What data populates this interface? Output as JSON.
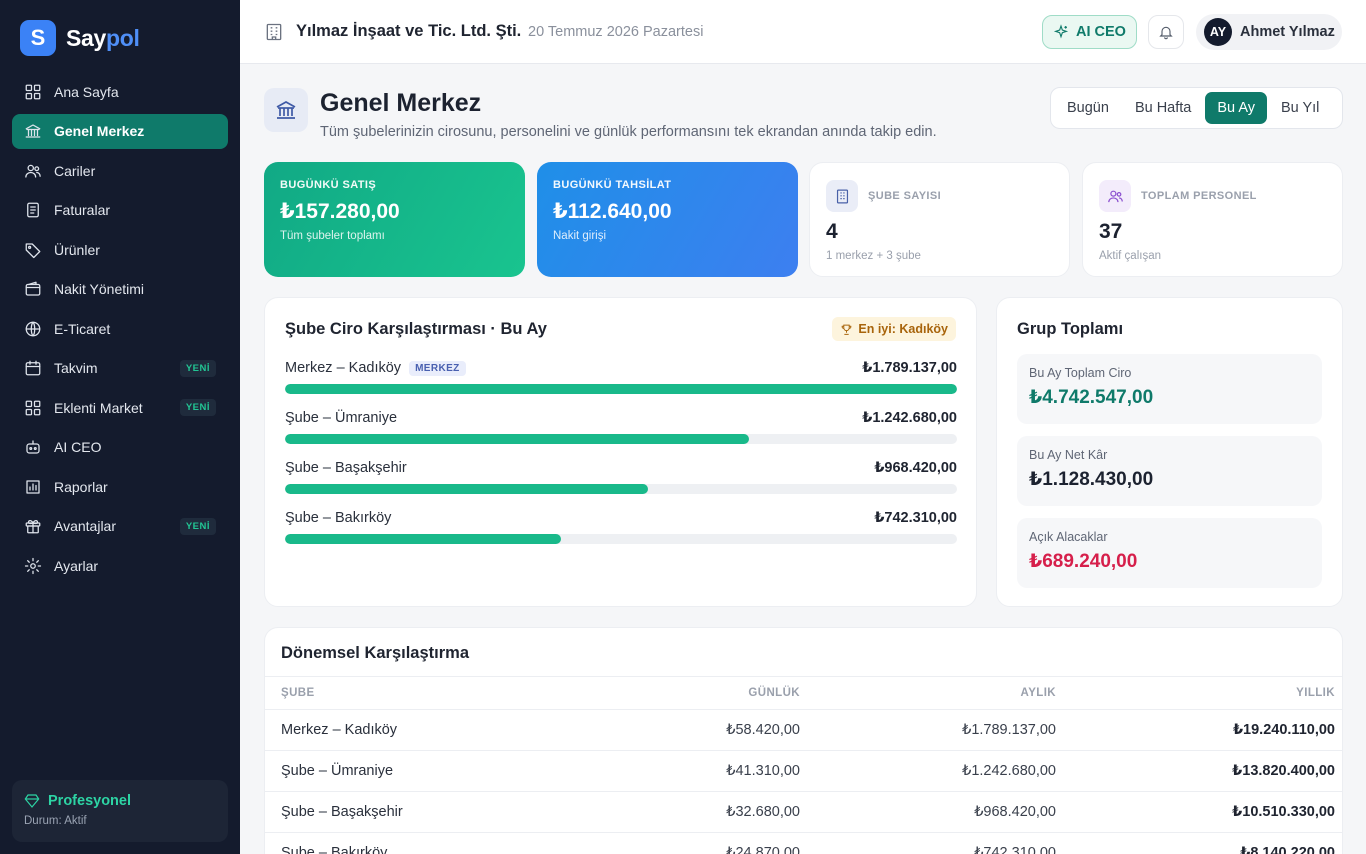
{
  "brand": {
    "logo_letter": "S",
    "name_part1": "Say",
    "name_part2": "pol"
  },
  "sidebar": {
    "items": [
      {
        "label": "Ana Sayfa",
        "icon": "grid-icon"
      },
      {
        "label": "Genel Merkez",
        "icon": "bank-icon",
        "active": true
      },
      {
        "label": "Cariler",
        "icon": "users-icon"
      },
      {
        "label": "Faturalar",
        "icon": "invoice-icon"
      },
      {
        "label": "Ürünler",
        "icon": "tag-icon"
      },
      {
        "label": "Nakit Yönetimi",
        "icon": "wallet-icon"
      },
      {
        "label": "E-Ticaret",
        "icon": "globe-icon"
      },
      {
        "label": "Takvim",
        "icon": "calendar-icon",
        "badge": "YENİ"
      },
      {
        "label": "Eklenti Market",
        "icon": "apps-icon",
        "badge": "YENİ"
      },
      {
        "label": "AI CEO",
        "icon": "robot-icon"
      },
      {
        "label": "Raporlar",
        "icon": "report-icon"
      },
      {
        "label": "Avantajlar",
        "icon": "gift-icon",
        "badge": "YENİ"
      },
      {
        "label": "Ayarlar",
        "icon": "gear-icon"
      }
    ],
    "plan": {
      "title": "Profesyonel",
      "status": "Durum: Aktif"
    }
  },
  "topbar": {
    "company": "Yılmaz İnşaat ve Tic. Ltd. Şti.",
    "date": "20 Temmuz 2026 Pazartesi",
    "ai_button": "AI CEO",
    "user": {
      "initials": "AY",
      "name": "Ahmet Yılmaz"
    }
  },
  "page": {
    "title": "Genel Merkez",
    "subtitle": "Tüm şubelerinizin cirosunu, personelini ve günlük performansını tek ekrandan anında takip edin.",
    "periods": [
      "Bugün",
      "Bu Hafta",
      "Bu Ay",
      "Bu Yıl"
    ],
    "active_period": "Bu Ay"
  },
  "kpis": {
    "sales": {
      "label": "BUGÜNKÜ SATIŞ",
      "value": "₺157.280,00",
      "sub": "Tüm şubeler toplamı"
    },
    "collection": {
      "label": "BUGÜNKÜ TAHSİLAT",
      "value": "₺112.640,00",
      "sub": "Nakit girişi"
    },
    "branches": {
      "label": "ŞUBE SAYISI",
      "value": "4",
      "sub": "1 merkez + 3 şube"
    },
    "staff": {
      "label": "TOPLAM PERSONEL",
      "value": "37",
      "sub": "Aktif çalışan"
    }
  },
  "branch_comparison": {
    "title": "Şube Ciro Karşılaştırması · Bu Ay",
    "best": "En iyi: Kadıköy",
    "hq_tag": "MERKEZ",
    "rows": [
      {
        "name": "Merkez – Kadıköy",
        "value": "₺1.789.137,00",
        "fraction": 1.0
      },
      {
        "name": "Şube – Ümraniye",
        "value": "₺1.242.680,00",
        "fraction": 0.69
      },
      {
        "name": "Şube – Başakşehir",
        "value": "₺968.420,00",
        "fraction": 0.54
      },
      {
        "name": "Şube – Bakırköy",
        "value": "₺742.310,00",
        "fraction": 0.41
      }
    ]
  },
  "group_totals": {
    "title": "Grup Toplamı",
    "stats": [
      {
        "label": "Bu Ay Toplam Ciro",
        "value": "₺4.742.547,00",
        "color": "#0f7a6a"
      },
      {
        "label": "Bu Ay Net Kâr",
        "value": "₺1.128.430,00",
        "color": "#1c2230"
      },
      {
        "label": "Açık Alacaklar",
        "value": "₺689.240,00",
        "color": "#d61f4b"
      }
    ]
  },
  "period_table": {
    "title": "Dönemsel Karşılaştırma",
    "headers": [
      "ŞUBE",
      "GÜNLÜK",
      "AYLIK",
      "YILLIK"
    ],
    "rows": [
      [
        "Merkez – Kadıköy",
        "₺58.420,00",
        "₺1.789.137,00",
        "₺19.240.110,00"
      ],
      [
        "Şube – Ümraniye",
        "₺41.310,00",
        "₺1.242.680,00",
        "₺13.820.400,00"
      ],
      [
        "Şube – Başakşehir",
        "₺32.680,00",
        "₺968.420,00",
        "₺10.510.330,00"
      ],
      [
        "Şube – Bakırköy",
        "₺24.870,00",
        "₺742.310,00",
        "₺8.140.220,00"
      ]
    ]
  }
}
